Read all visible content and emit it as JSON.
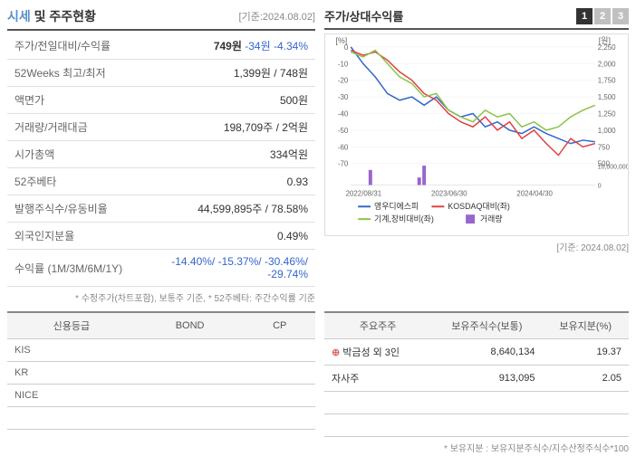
{
  "header": {
    "title_accent": "시세",
    "title_rest": " 및 주주현황",
    "date_ref": "[기준:2024.08.02]"
  },
  "stock_info": {
    "rows": [
      {
        "label": "주가/전일대비/수익률",
        "value_html": true,
        "main": "749원",
        "chg": "-34원",
        "pct": "-4.34%"
      },
      {
        "label": "52Weeks 최고/최저",
        "value": "1,399원 / 748원"
      },
      {
        "label": "액면가",
        "value": "500원"
      },
      {
        "label": "거래량/거래대금",
        "value": "198,709주 / 2억원"
      },
      {
        "label": "시가총액",
        "value": "334억원"
      },
      {
        "label": "52주베타",
        "value": "0.93"
      },
      {
        "label": "발행주식수/유동비율",
        "value": "44,599,895주 / 78.58%"
      },
      {
        "label": "외국인지분율",
        "value": "0.49%"
      },
      {
        "label": "수익률 (1M/3M/6M/1Y)",
        "value_neg": "-14.40%/ -15.37%/ -30.46%/ -29.74%"
      }
    ],
    "footnote": "* 수정주가(차트포함), 보통주 기준, * 52주베타: 주간수익률 기준"
  },
  "chart": {
    "title": "주가/상대수익률",
    "tabs": [
      "1",
      "2",
      "3"
    ],
    "active_tab": 0,
    "y_left_label": "[%]",
    "y_right_label": "[원]",
    "y_left_ticks": [
      0,
      -10,
      -20,
      -30,
      -40,
      -50,
      -60,
      -70
    ],
    "y_right_ticks": [
      2250,
      2000,
      1750,
      1500,
      1250,
      1000,
      750,
      500
    ],
    "vol_ticks": [
      10000000,
      0
    ],
    "x_ticks": [
      "2022/08/31",
      "2023/06/30",
      "2024/04/30"
    ],
    "series": {
      "blue": {
        "name": "영우디에스피",
        "color": "#3366cc",
        "points": [
          [
            0,
            0
          ],
          [
            5,
            -10
          ],
          [
            10,
            -18
          ],
          [
            15,
            -28
          ],
          [
            20,
            -32
          ],
          [
            25,
            -30
          ],
          [
            30,
            -35
          ],
          [
            35,
            -30
          ],
          [
            40,
            -38
          ],
          [
            45,
            -42
          ],
          [
            50,
            -40
          ],
          [
            55,
            -48
          ],
          [
            60,
            -45
          ],
          [
            65,
            -50
          ],
          [
            70,
            -52
          ],
          [
            75,
            -48
          ],
          [
            80,
            -52
          ],
          [
            85,
            -55
          ],
          [
            90,
            -58
          ],
          [
            95,
            -56
          ],
          [
            100,
            -57
          ]
        ]
      },
      "red": {
        "name": "KOSDAQ대비(좌)",
        "color": "#e04040",
        "points": [
          [
            0,
            -2
          ],
          [
            5,
            -5
          ],
          [
            10,
            -3
          ],
          [
            15,
            -8
          ],
          [
            20,
            -15
          ],
          [
            25,
            -20
          ],
          [
            30,
            -28
          ],
          [
            35,
            -32
          ],
          [
            40,
            -40
          ],
          [
            45,
            -45
          ],
          [
            50,
            -48
          ],
          [
            55,
            -42
          ],
          [
            60,
            -50
          ],
          [
            65,
            -45
          ],
          [
            70,
            -55
          ],
          [
            75,
            -50
          ],
          [
            80,
            -58
          ],
          [
            85,
            -65
          ],
          [
            90,
            -55
          ],
          [
            95,
            -60
          ],
          [
            100,
            -58
          ]
        ]
      },
      "green": {
        "name": "기계,장비대비(좌)",
        "color": "#8bc34a",
        "points": [
          [
            0,
            -3
          ],
          [
            5,
            -6
          ],
          [
            10,
            -2
          ],
          [
            15,
            -10
          ],
          [
            20,
            -18
          ],
          [
            25,
            -22
          ],
          [
            30,
            -30
          ],
          [
            35,
            -28
          ],
          [
            40,
            -38
          ],
          [
            45,
            -42
          ],
          [
            50,
            -45
          ],
          [
            55,
            -38
          ],
          [
            60,
            -42
          ],
          [
            65,
            -40
          ],
          [
            70,
            -48
          ],
          [
            75,
            -45
          ],
          [
            80,
            -50
          ],
          [
            85,
            -48
          ],
          [
            90,
            -42
          ],
          [
            95,
            -38
          ],
          [
            100,
            -35
          ]
        ]
      },
      "volume": {
        "name": "거래량",
        "color": "#9966cc",
        "bars": [
          [
            8,
            7000000
          ],
          [
            28,
            3500000
          ],
          [
            30,
            9000000
          ]
        ]
      }
    },
    "background": "#ffffff",
    "grid_color": "#eeeeee",
    "date_ref": "[기준: 2024.08.02]"
  },
  "credit": {
    "headers": [
      "신용등급",
      "BOND",
      "CP"
    ],
    "rows": [
      {
        "name": "KIS",
        "bond": "",
        "cp": ""
      },
      {
        "name": "KR",
        "bond": "",
        "cp": ""
      },
      {
        "name": "NICE",
        "bond": "",
        "cp": ""
      }
    ]
  },
  "shareholders": {
    "headers": [
      "주요주주",
      "보유주식수(보통)",
      "보유지분(%)"
    ],
    "rows": [
      {
        "name": "박금성 외 3인",
        "shares": "8,640,134",
        "pct": "19.37",
        "expandable": true
      },
      {
        "name": "자사주",
        "shares": "913,095",
        "pct": "2.05",
        "expandable": false
      },
      {
        "name": "",
        "shares": "",
        "pct": "",
        "expandable": false
      },
      {
        "name": "",
        "shares": "",
        "pct": "",
        "expandable": false
      }
    ],
    "footnote": "* 보유지분 : 보유지분주식수/지수산정주식수*100"
  }
}
